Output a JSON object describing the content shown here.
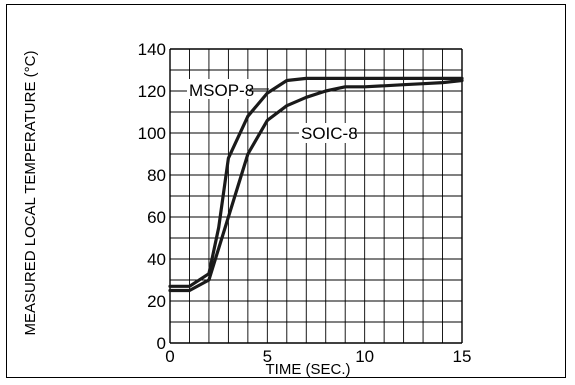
{
  "chart_data": {
    "type": "line",
    "xlabel": "TIME (SEC.)",
    "ylabel": "MEASURED LOCAL TEMPERATURE (°C)",
    "xlim": [
      0,
      15
    ],
    "ylim": [
      0,
      140
    ],
    "xticks": [
      0,
      5,
      10,
      15
    ],
    "yticks": [
      0,
      20,
      40,
      60,
      80,
      100,
      120,
      140
    ],
    "grid": true,
    "colors": {
      "line": "#1a1a1a",
      "grid": "#000000"
    },
    "series": [
      {
        "name": "MSOP-8",
        "x": [
          0,
          1,
          2,
          2.5,
          3,
          4,
          5,
          6,
          7,
          8,
          9,
          10,
          11,
          12,
          13,
          14,
          15
        ],
        "y": [
          27,
          27,
          33,
          55,
          88,
          108,
          119,
          125,
          126,
          126,
          126,
          126,
          126,
          126,
          126,
          126,
          126
        ]
      },
      {
        "name": "SOIC-8",
        "x": [
          0,
          1,
          2,
          3,
          4,
          5,
          6,
          7,
          8,
          9,
          10,
          11,
          12,
          13,
          14,
          15
        ],
        "y": [
          25,
          25,
          30,
          60,
          90,
          106,
          113,
          117,
          120,
          122,
          122,
          122.5,
          123,
          123.5,
          124,
          125
        ]
      }
    ]
  }
}
